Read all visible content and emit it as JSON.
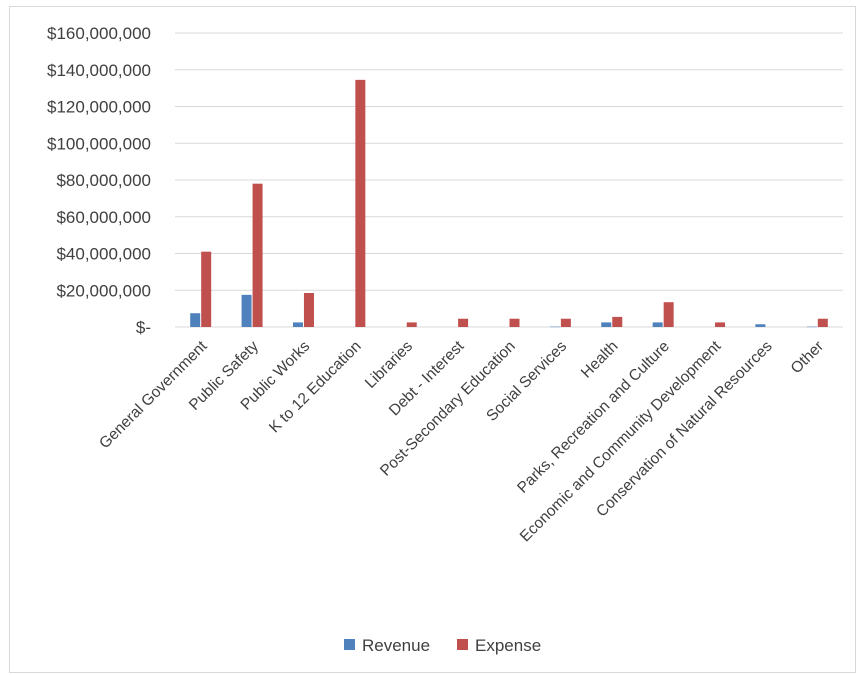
{
  "chart_data": {
    "type": "bar",
    "categories": [
      "General Government",
      "Public Safety",
      "Public Works",
      "K to 12 Education",
      "Libraries",
      "Debt - Interest",
      "Post-Secondary Education",
      "Social Services",
      "Health",
      "Parks, Recreation and Culture",
      "Economic and Community Development",
      "Conservation of Natural Resources",
      "Other"
    ],
    "series": [
      {
        "name": "Revenue",
        "color": "#4f81bd",
        "values": [
          7500000,
          17500000,
          2500000,
          0,
          0,
          0,
          0,
          200000,
          2500000,
          2500000,
          0,
          1500000,
          200000
        ]
      },
      {
        "name": "Expense",
        "color": "#c0504d",
        "values": [
          41000000,
          78000000,
          18500000,
          134500000,
          2500000,
          4500000,
          4500000,
          4500000,
          5500000,
          13500000,
          2500000,
          0,
          4500000
        ]
      }
    ],
    "y_ticks": [
      0,
      20000000,
      40000000,
      60000000,
      80000000,
      100000000,
      120000000,
      140000000,
      160000000
    ],
    "y_tick_labels": [
      "$-",
      "$20,000,000",
      "$40,000,000",
      "$60,000,000",
      "$80,000,000",
      "$100,000,000",
      "$120,000,000",
      "$140,000,000",
      "$160,000,000"
    ],
    "ylim": [
      0,
      160000000
    ],
    "grid": true,
    "legend_position": "bottom",
    "title": "",
    "xlabel": "",
    "ylabel": ""
  }
}
